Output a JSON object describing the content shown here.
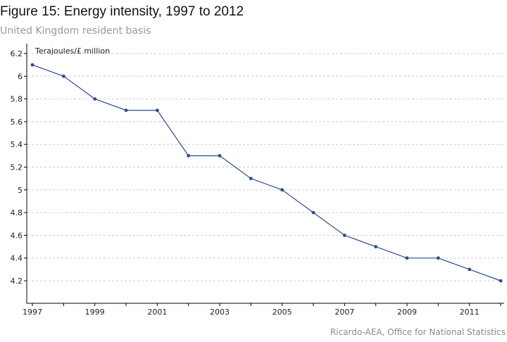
{
  "header": {
    "title": "Figure 15: Energy intensity, 1997 to 2012",
    "subtitle": "United Kingdom resident basis"
  },
  "footer": {
    "source": "Ricardo-AEA, Office for National Statistics"
  },
  "colors": {
    "line": "#2f4b8f",
    "grid": "#cccccc",
    "axis": "#000000"
  },
  "chart_data": {
    "type": "line",
    "title": "Figure 15: Energy intensity, 1997 to 2012",
    "subtitle": "United Kingdom resident basis",
    "ylabel": "Terajoules/£ million",
    "xlabel": "",
    "x": [
      1997,
      1998,
      1999,
      2000,
      2001,
      2002,
      2003,
      2004,
      2005,
      2006,
      2007,
      2008,
      2009,
      2010,
      2011,
      2012
    ],
    "series": [
      {
        "values": [
          6.1,
          6.0,
          5.8,
          5.7,
          5.7,
          5.3,
          5.3,
          5.1,
          5.0,
          4.8,
          4.6,
          4.5,
          4.4,
          4.4,
          4.3,
          4.2
        ]
      }
    ],
    "xlim": [
      1997,
      2012
    ],
    "ylim": [
      4.0,
      6.3
    ],
    "x_tick_labels": [
      "1997",
      "1999",
      "2001",
      "2003",
      "2005",
      "2007",
      "2009",
      "2011"
    ],
    "y_tick_labels": [
      "4.2",
      "4.4",
      "4.6",
      "4.8",
      "5",
      "5.2",
      "5.4",
      "5.6",
      "5.8",
      "6",
      "6.2"
    ],
    "grid": "horizontal dashed",
    "legend": "none"
  }
}
